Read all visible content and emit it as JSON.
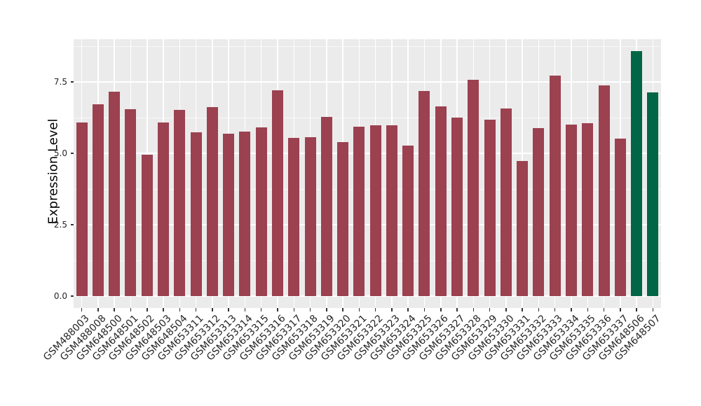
{
  "figure": {
    "background": "#FFFFFF",
    "panel_background": "#EBEBEB",
    "gridline_color": "#FFFFFF",
    "tick_mark_color": "#333333",
    "axis_text_color": "#262626"
  },
  "chart_data": {
    "type": "bar",
    "title": "",
    "xlabel": "",
    "ylabel": "Expression Level",
    "ylim": [
      0,
      8.99
    ],
    "yticks": [
      0.0,
      2.5,
      5.0,
      7.5
    ],
    "ytick_labels": [
      "0.0",
      "2.5",
      "5.0",
      "7.5"
    ],
    "minor_gridlines": [
      1.25,
      3.75,
      6.25,
      8.75
    ],
    "grid": true,
    "legend": false,
    "categories": [
      "GSM488003",
      "GSM488008",
      "GSM648500",
      "GSM648501",
      "GSM648502",
      "GSM648503",
      "GSM648504",
      "GSM653311",
      "GSM653312",
      "GSM653313",
      "GSM653314",
      "GSM653315",
      "GSM653316",
      "GSM653317",
      "GSM653318",
      "GSM653319",
      "GSM653320",
      "GSM653321",
      "GSM653322",
      "GSM653323",
      "GSM653324",
      "GSM653325",
      "GSM653326",
      "GSM653327",
      "GSM653328",
      "GSM653329",
      "GSM653330",
      "GSM653331",
      "GSM653332",
      "GSM653333",
      "GSM653334",
      "GSM653335",
      "GSM653336",
      "GSM653337",
      "GSM648506",
      "GSM648507"
    ],
    "values": [
      6.07,
      6.72,
      7.16,
      6.55,
      4.95,
      6.07,
      6.52,
      5.74,
      6.62,
      5.69,
      5.77,
      5.91,
      7.2,
      5.53,
      5.57,
      6.27,
      5.39,
      5.93,
      5.99,
      5.99,
      5.27,
      7.18,
      6.65,
      6.25,
      7.57,
      6.18,
      6.58,
      4.73,
      5.89,
      7.72,
      6.01,
      6.05,
      7.38,
      5.51,
      8.57,
      7.13
    ],
    "bar_color_default": "#9B4150",
    "bar_color_highlight": "#006645",
    "highlighted_categories": [
      "GSM648506",
      "GSM648507"
    ]
  }
}
